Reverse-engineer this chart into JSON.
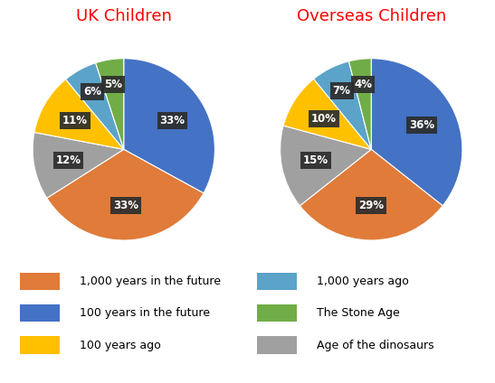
{
  "uk_title": "UK Children",
  "overseas_title": "Overseas Children",
  "title_color": "#FF0000",
  "categories": [
    "100 years in the future",
    "1,000 years in the future",
    "Age of the dinosaurs",
    "100 years ago",
    "1,000 years ago",
    "The Stone Age"
  ],
  "colors": [
    "#4472C4",
    "#E07B39",
    "#A0A0A0",
    "#FFC000",
    "#5BA3C9",
    "#70AD47"
  ],
  "uk_values": [
    33,
    33,
    12,
    11,
    6,
    5
  ],
  "overseas_values": [
    36,
    29,
    15,
    10,
    7,
    4
  ],
  "label_bg_color": "#2D2D2D",
  "label_text_color": "white",
  "label_fontsize": 8.5,
  "title_fontsize": 13,
  "legend_fontsize": 9,
  "background_color": "white",
  "legend_left_labels": [
    "1,000 years in the future",
    "100 years in the future",
    "100 years ago"
  ],
  "legend_left_colors": [
    "#E07B39",
    "#4472C4",
    "#FFC000"
  ],
  "legend_right_labels": [
    "1,000 years ago",
    "The Stone Age",
    "Age of the dinosaurs"
  ],
  "legend_right_colors": [
    "#5BA3C9",
    "#70AD47",
    "#A0A0A0"
  ]
}
